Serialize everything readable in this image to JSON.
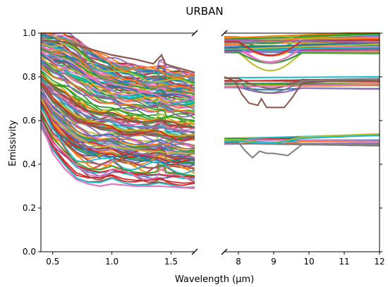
{
  "chart_data": {
    "type": "line",
    "title": "URBAN",
    "xlabel": "Wavelength (μm)",
    "ylabel": "Emissivity",
    "ylim": [
      0.0,
      1.0
    ],
    "grid": false,
    "legend": "none",
    "broken_x_axis": true,
    "panels": [
      {
        "name": "left",
        "xlim": [
          0.4,
          1.7
        ],
        "xticks": [
          0.5,
          1.0,
          1.5
        ],
        "xtick_labels": [
          "0.5",
          "1.0",
          "1.5"
        ]
      },
      {
        "name": "right",
        "xlim": [
          7.6,
          12.0
        ],
        "xticks": [
          8,
          9,
          10,
          11,
          12
        ],
        "xtick_labels": [
          "8",
          "9",
          "10",
          "11",
          "12"
        ]
      }
    ],
    "yticks": [
      0.0,
      0.2,
      0.4,
      0.6,
      0.8,
      1.0
    ],
    "ytick_labels": [
      "0.0",
      "0.2",
      "0.4",
      "0.6",
      "0.8",
      "1.0"
    ],
    "series_count_left": 160,
    "series_count_right": 70,
    "left_envelope": {
      "x": [
        0.4,
        0.5,
        0.6,
        0.7,
        0.8,
        0.9,
        1.0,
        1.1,
        1.2,
        1.3,
        1.4,
        1.5,
        1.6,
        1.7
      ],
      "upper": [
        1.0,
        1.0,
        1.0,
        0.97,
        0.93,
        0.9,
        0.88,
        0.86,
        0.85,
        0.84,
        0.84,
        0.83,
        0.82,
        0.81
      ],
      "lower": [
        0.57,
        0.45,
        0.38,
        0.32,
        0.3,
        0.3,
        0.32,
        0.3,
        0.29,
        0.29,
        0.3,
        0.29,
        0.28,
        0.28
      ]
    },
    "highlighted_series": [
      {
        "panel": "left",
        "color": "#8c564b",
        "x": [
          0.4,
          0.6,
          0.8,
          1.0,
          1.2,
          1.35,
          1.42,
          1.45,
          1.5,
          1.7
        ],
        "y": [
          0.97,
          0.96,
          0.93,
          0.9,
          0.88,
          0.86,
          0.9,
          0.86,
          0.85,
          0.82
        ]
      },
      {
        "panel": "left",
        "color": "#e377c2",
        "x": [
          0.4,
          0.45,
          0.5,
          0.6,
          0.7,
          0.8,
          0.9,
          1.0,
          1.2,
          1.4,
          1.7
        ],
        "y": [
          0.57,
          0.52,
          0.45,
          0.38,
          0.33,
          0.31,
          0.3,
          0.31,
          0.3,
          0.3,
          0.29
        ]
      },
      {
        "panel": "right",
        "color": "#8c564b",
        "x": [
          7.6,
          7.9,
          8.1,
          8.3,
          8.55,
          8.65,
          8.8,
          9.0,
          9.3,
          9.5,
          9.8,
          10.5,
          12.0
        ],
        "y": [
          0.8,
          0.78,
          0.72,
          0.68,
          0.67,
          0.7,
          0.66,
          0.66,
          0.66,
          0.7,
          0.77,
          0.78,
          0.78
        ]
      },
      {
        "panel": "right",
        "color": "#7f7f7f",
        "x": [
          7.6,
          8.0,
          8.2,
          8.4,
          8.6,
          8.8,
          9.0,
          9.4,
          9.8,
          10.5,
          12.0
        ],
        "y": [
          0.5,
          0.5,
          0.46,
          0.43,
          0.46,
          0.45,
          0.45,
          0.44,
          0.49,
          0.49,
          0.49
        ]
      }
    ]
  }
}
